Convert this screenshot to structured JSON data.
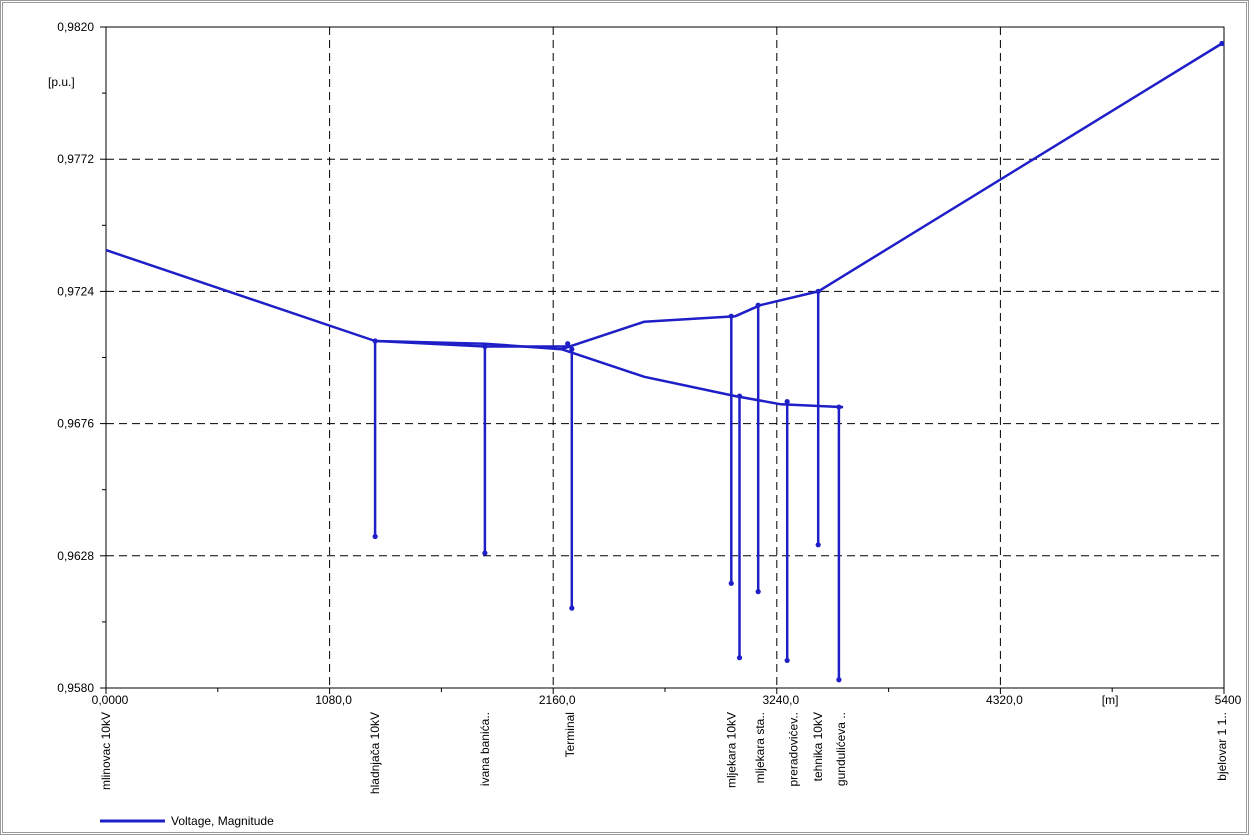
{
  "chart_data": {
    "type": "line",
    "ylabel": "[p.u.]",
    "xlabel": "[m]",
    "xlim": [
      0,
      5400
    ],
    "ylim": [
      0.958,
      0.982
    ],
    "yticks": [
      "0,9580",
      "0,9628",
      "0,9676",
      "0,9724",
      "0,9772",
      "0,9820"
    ],
    "ytick_values": [
      0.958,
      0.9628,
      0.9676,
      0.9724,
      0.9772,
      0.982
    ],
    "xticks": [
      "0,0000",
      "1080,0",
      "2160,0",
      "3240,0",
      "4320,0",
      "5400"
    ],
    "xtick_values": [
      0,
      1080,
      2160,
      3240,
      4320,
      5400
    ],
    "grid": true,
    "legend_position": "bottom-left",
    "series": [
      {
        "name": "Voltage, Magnitude",
        "color": "#1f1fc8",
        "segments": [
          [
            [
              0,
              0.9739
            ],
            [
              1300,
              0.9706
            ],
            [
              1830,
              0.9705
            ],
            [
              2200,
              0.9703
            ],
            [
              2600,
              0.9713
            ],
            [
              3040,
              0.9715
            ],
            [
              3160,
              0.9719
            ],
            [
              3440,
              0.9724
            ],
            [
              5390,
              0.9814
            ]
          ],
          [
            [
              1300,
              0.9706
            ],
            [
              1830,
              0.9704
            ],
            [
              2250,
              0.9704
            ]
          ],
          [
            [
              2200,
              0.9703
            ],
            [
              2600,
              0.9693
            ],
            [
              3040,
              0.9686
            ],
            [
              3260,
              0.9683
            ],
            [
              3560,
              0.9682
            ]
          ],
          [
            [
              1300,
              0.9706
            ],
            [
              1300,
              0.9635
            ]
          ],
          [
            [
              1830,
              0.9704
            ],
            [
              1830,
              0.9629
            ]
          ],
          [
            [
              2250,
              0.9703
            ],
            [
              2250,
              0.9609
            ]
          ],
          [
            [
              3020,
              0.9715
            ],
            [
              3020,
              0.9618
            ]
          ],
          [
            [
              3060,
              0.9686
            ],
            [
              3060,
              0.9591
            ]
          ],
          [
            [
              3150,
              0.9719
            ],
            [
              3150,
              0.9615
            ]
          ],
          [
            [
              3290,
              0.9684
            ],
            [
              3290,
              0.959
            ]
          ],
          [
            [
              3440,
              0.9724
            ],
            [
              3440,
              0.9632
            ]
          ],
          [
            [
              3540,
              0.9682
            ],
            [
              3540,
              0.9583
            ]
          ]
        ],
        "markers": [
          [
            1300,
            0.9706
          ],
          [
            1830,
            0.9704
          ],
          [
            2230,
            0.9705
          ],
          [
            2250,
            0.9703
          ],
          [
            3020,
            0.9715
          ],
          [
            3060,
            0.9686
          ],
          [
            3150,
            0.9719
          ],
          [
            3290,
            0.9684
          ],
          [
            3440,
            0.9724
          ],
          [
            3540,
            0.9682
          ],
          [
            5390,
            0.9814
          ],
          [
            1300,
            0.9635
          ],
          [
            1830,
            0.9629
          ],
          [
            2250,
            0.9609
          ],
          [
            3020,
            0.9618
          ],
          [
            3060,
            0.9591
          ],
          [
            3150,
            0.9615
          ],
          [
            3290,
            0.959
          ],
          [
            3440,
            0.9632
          ],
          [
            3540,
            0.9583
          ]
        ]
      }
    ],
    "node_labels": [
      {
        "text": "mlinovac 10kV",
        "x": 0
      },
      {
        "text": "hladnjača 10kV",
        "x": 1300
      },
      {
        "text": "ivana banića..",
        "x": 1830
      },
      {
        "text": "Terminal",
        "x": 2240
      },
      {
        "text": "mljekara 10kV",
        "x": 3020
      },
      {
        "text": "mljekara sta..",
        "x": 3160
      },
      {
        "text": "preradovićev..",
        "x": 3320
      },
      {
        "text": "tehnika 10kV",
        "x": 3440
      },
      {
        "text": "gundulićeva ..",
        "x": 3550
      },
      {
        "text": "bjelovar 1 1..",
        "x": 5390
      }
    ]
  }
}
